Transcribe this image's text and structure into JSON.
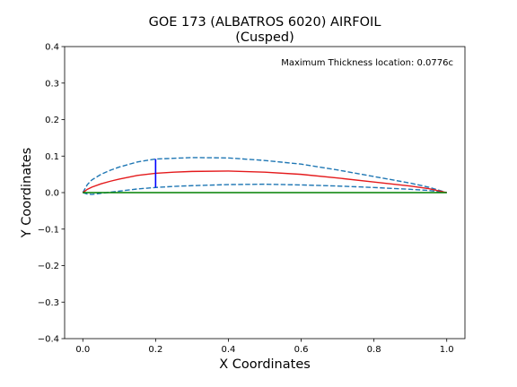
{
  "chart_data": {
    "type": "line",
    "title": "GOE 173 (ALBATROS 6020) AIRFOIL",
    "subtitle": "(Cusped)",
    "xlabel": "X Coordinates",
    "ylabel": "Y Coordinates",
    "xlim": [
      -0.05,
      1.05
    ],
    "ylim": [
      -0.4,
      0.4
    ],
    "grid": false,
    "x_ticks": [
      0.0,
      0.2,
      0.4,
      0.6,
      0.8,
      1.0
    ],
    "x_tick_labels": [
      "0.0",
      "0.2",
      "0.4",
      "0.6",
      "0.8",
      "1.0"
    ],
    "y_ticks": [
      -0.4,
      -0.3,
      -0.2,
      -0.1,
      0.0,
      0.1,
      0.2,
      0.3,
      0.4
    ],
    "y_tick_labels": [
      "−0.4",
      "−0.3",
      "−0.2",
      "−0.1",
      "0.0",
      "0.1",
      "0.2",
      "0.3",
      "0.4"
    ],
    "annotation": "Maximum Thickness location: 0.0776c",
    "series": [
      {
        "style": "dashed",
        "color": "#1f77b4",
        "x": [
          0.0,
          0.0125,
          0.025,
          0.05,
          0.075,
          0.1,
          0.15,
          0.2,
          0.25,
          0.3,
          0.4,
          0.5,
          0.6,
          0.7,
          0.8,
          0.9,
          0.95,
          1.0
        ],
        "y": [
          0.0,
          0.022,
          0.035,
          0.05,
          0.061,
          0.07,
          0.084,
          0.092,
          0.094,
          0.096,
          0.095,
          0.088,
          0.078,
          0.062,
          0.044,
          0.026,
          0.015,
          0.0
        ]
      },
      {
        "style": "dashed",
        "color": "#1f77b4",
        "x": [
          0.0,
          0.0125,
          0.025,
          0.05,
          0.075,
          0.1,
          0.15,
          0.2,
          0.25,
          0.3,
          0.4,
          0.5,
          0.6,
          0.7,
          0.8,
          0.9,
          0.95,
          1.0
        ],
        "y": [
          0.0,
          -0.004,
          -0.005,
          -0.002,
          0.001,
          0.004,
          0.01,
          0.014,
          0.017,
          0.019,
          0.022,
          0.023,
          0.021,
          0.018,
          0.014,
          0.009,
          0.006,
          0.0
        ]
      },
      {
        "style": "solid",
        "color": "#e41a1c",
        "x": [
          0.0,
          0.0125,
          0.025,
          0.05,
          0.075,
          0.1,
          0.15,
          0.2,
          0.25,
          0.3,
          0.4,
          0.5,
          0.6,
          0.7,
          0.8,
          0.9,
          0.95,
          1.0
        ],
        "y": [
          0.0,
          0.009,
          0.015,
          0.024,
          0.031,
          0.037,
          0.047,
          0.053,
          0.056,
          0.058,
          0.059,
          0.056,
          0.05,
          0.04,
          0.029,
          0.018,
          0.011,
          0.0
        ]
      },
      {
        "style": "solid",
        "color": "#008000",
        "x": [
          0.0,
          1.0
        ],
        "y": [
          0.0,
          0.0
        ]
      },
      {
        "style": "solid",
        "color": "#0000ff",
        "x": [
          0.2,
          0.2
        ],
        "y": [
          0.014,
          0.092
        ]
      }
    ]
  }
}
